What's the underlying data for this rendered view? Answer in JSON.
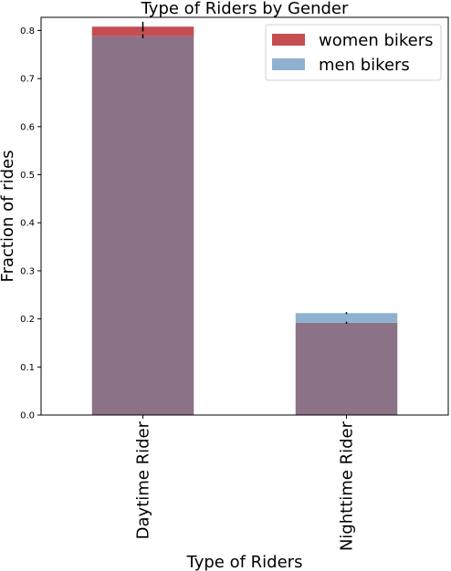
{
  "chart_data": {
    "type": "bar",
    "title": "Type of Riders by Gender",
    "xlabel": "Type of Riders",
    "ylabel": "Fraction of rides",
    "categories": [
      "Daytime Rider",
      "Nighttime Rider"
    ],
    "series": [
      {
        "name": "women bikers",
        "values": [
          0.808,
          0.192
        ],
        "errors": [
          0.01,
          0.002
        ],
        "color": "#c44e52"
      },
      {
        "name": "men bikers",
        "values": [
          0.788,
          0.212
        ],
        "errors": [
          0.004,
          0.002
        ],
        "color": "#8eb1d1"
      }
    ],
    "overlap_color": "#8b7286",
    "ylim": [
      0,
      0.8274
    ],
    "yticks": [
      0.0,
      0.1,
      0.2,
      0.3,
      0.4,
      0.5,
      0.6,
      0.7,
      0.8
    ],
    "ytick_labels": [
      "0.0",
      "0.1",
      "0.2",
      "0.3",
      "0.4",
      "0.5",
      "0.6",
      "0.7",
      "0.8"
    ],
    "grid": false,
    "legend_position": "top-right"
  }
}
